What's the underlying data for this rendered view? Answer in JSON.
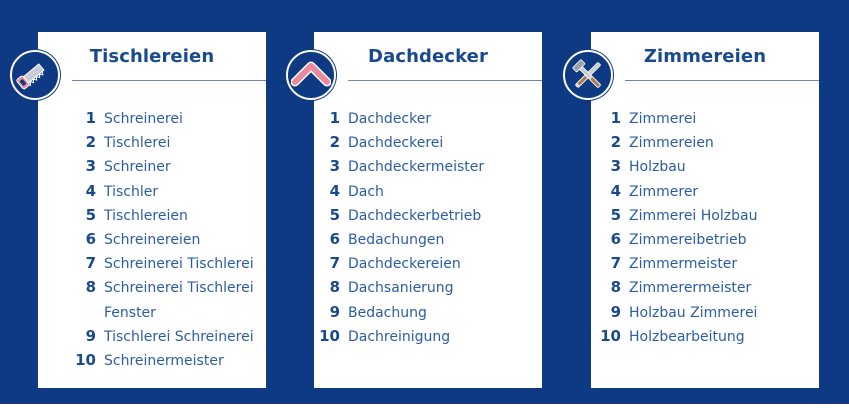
{
  "colors": {
    "background": "#0d3a82",
    "card": "#ffffff",
    "title": "#1a4a8e",
    "text": "#2b5da3"
  },
  "cards": [
    {
      "title": "Tischlereien",
      "icon": "saw-icon",
      "items": [
        {
          "num": "1",
          "text": "Schreinerei"
        },
        {
          "num": "2",
          "text": "Tischlerei"
        },
        {
          "num": "3",
          "text": "Schreiner"
        },
        {
          "num": "4",
          "text": "Tischler"
        },
        {
          "num": "5",
          "text": "Tischlereien"
        },
        {
          "num": "6",
          "text": "Schreinereien"
        },
        {
          "num": "7",
          "text": "Schreinerei Tischlerei"
        },
        {
          "num": "8",
          "text": "Schreinerei Tischlerei",
          "text2": "Fenster"
        },
        {
          "num": "9",
          "text": "Tischlerei Schreinerei"
        },
        {
          "num": "10",
          "text": "Schreinermeister"
        }
      ]
    },
    {
      "title": "Dachdecker",
      "icon": "roof-icon",
      "items": [
        {
          "num": "1",
          "text": "Dachdecker"
        },
        {
          "num": "2",
          "text": "Dachdeckerei"
        },
        {
          "num": "3",
          "text": "Dachdeckermeister"
        },
        {
          "num": "4",
          "text": "Dach"
        },
        {
          "num": "5",
          "text": "Dachdeckerbetrieb"
        },
        {
          "num": "6",
          "text": "Bedachungen"
        },
        {
          "num": "7",
          "text": "Dachdeckereien"
        },
        {
          "num": "8",
          "text": "Dachsanierung"
        },
        {
          "num": "9",
          "text": "Bedachung"
        },
        {
          "num": "10",
          "text": "Dachreinigung"
        }
      ]
    },
    {
      "title": "Zimmereien",
      "icon": "tools-icon",
      "items": [
        {
          "num": "1",
          "text": "Zimmerei"
        },
        {
          "num": "2",
          "text": "Zimmereien"
        },
        {
          "num": "3",
          "text": "Holzbau"
        },
        {
          "num": "4",
          "text": "Zimmerer"
        },
        {
          "num": "5",
          "text": "Zimmerei Holzbau"
        },
        {
          "num": "6",
          "text": "Zimmereibetrieb"
        },
        {
          "num": "7",
          "text": "Zimmermeister"
        },
        {
          "num": "8",
          "text": "Zimmerermeister"
        },
        {
          "num": "9",
          "text": "Holzbau Zimmerei"
        },
        {
          "num": "10",
          "text": "Holzbearbeitung"
        }
      ]
    }
  ]
}
